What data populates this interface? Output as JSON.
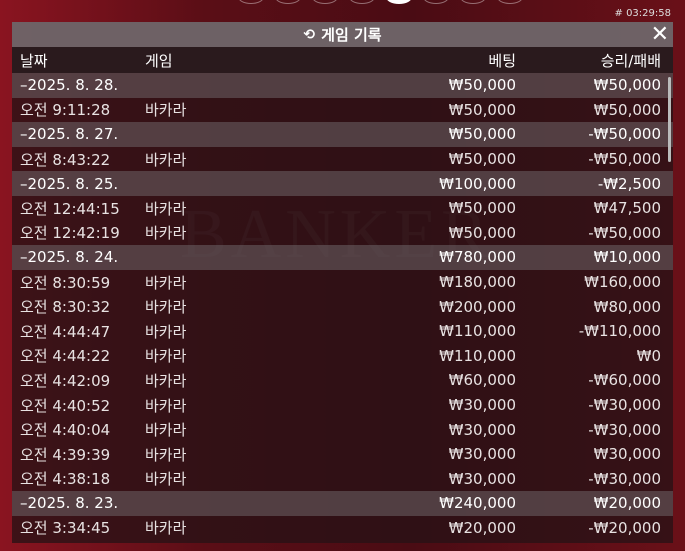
{
  "stamp": "# 03:29:58",
  "title": "게임 기록",
  "icons": {
    "history": "history-icon",
    "close": "close-icon"
  },
  "columns": [
    "날짜",
    "게임",
    "베팅",
    "승리/패배"
  ],
  "rows": [
    {
      "type": "group",
      "date": "–2025. 8. 28.",
      "game": "",
      "bet": "₩50,000",
      "result": "₩50,000"
    },
    {
      "type": "item",
      "date": "오전 9:11:28",
      "game": "바카라",
      "bet": "₩50,000",
      "result": "₩50,000"
    },
    {
      "type": "group",
      "date": "–2025. 8. 27.",
      "game": "",
      "bet": "₩50,000",
      "result": "-₩50,000"
    },
    {
      "type": "item",
      "date": "오전 8:43:22",
      "game": "바카라",
      "bet": "₩50,000",
      "result": "-₩50,000"
    },
    {
      "type": "group",
      "date": "–2025. 8. 25.",
      "game": "",
      "bet": "₩100,000",
      "result": "-₩2,500"
    },
    {
      "type": "item",
      "date": "오전 12:44:15",
      "game": "바카라",
      "bet": "₩50,000",
      "result": "₩47,500"
    },
    {
      "type": "item",
      "date": "오전 12:42:19",
      "game": "바카라",
      "bet": "₩50,000",
      "result": "-₩50,000"
    },
    {
      "type": "group",
      "date": "–2025. 8. 24.",
      "game": "",
      "bet": "₩780,000",
      "result": "₩10,000"
    },
    {
      "type": "item",
      "date": "오전 8:30:59",
      "game": "바카라",
      "bet": "₩180,000",
      "result": "₩160,000"
    },
    {
      "type": "item",
      "date": "오전 8:30:32",
      "game": "바카라",
      "bet": "₩200,000",
      "result": "₩80,000"
    },
    {
      "type": "item",
      "date": "오전 4:44:47",
      "game": "바카라",
      "bet": "₩110,000",
      "result": "-₩110,000"
    },
    {
      "type": "item",
      "date": "오전 4:44:22",
      "game": "바카라",
      "bet": "₩110,000",
      "result": "₩0"
    },
    {
      "type": "item",
      "date": "오전 4:42:09",
      "game": "바카라",
      "bet": "₩60,000",
      "result": "-₩60,000"
    },
    {
      "type": "item",
      "date": "오전 4:40:52",
      "game": "바카라",
      "bet": "₩30,000",
      "result": "-₩30,000"
    },
    {
      "type": "item",
      "date": "오전 4:40:04",
      "game": "바카라",
      "bet": "₩30,000",
      "result": "-₩30,000"
    },
    {
      "type": "item",
      "date": "오전 4:39:39",
      "game": "바카라",
      "bet": "₩30,000",
      "result": "₩30,000"
    },
    {
      "type": "item",
      "date": "오전 4:38:18",
      "game": "바카라",
      "bet": "₩30,000",
      "result": "-₩30,000"
    },
    {
      "type": "group",
      "date": "–2025. 8. 23.",
      "game": "",
      "bet": "₩240,000",
      "result": "₩20,000"
    },
    {
      "type": "item",
      "date": "오전 3:34:45",
      "game": "바카라",
      "bet": "₩20,000",
      "result": "-₩20,000"
    }
  ]
}
